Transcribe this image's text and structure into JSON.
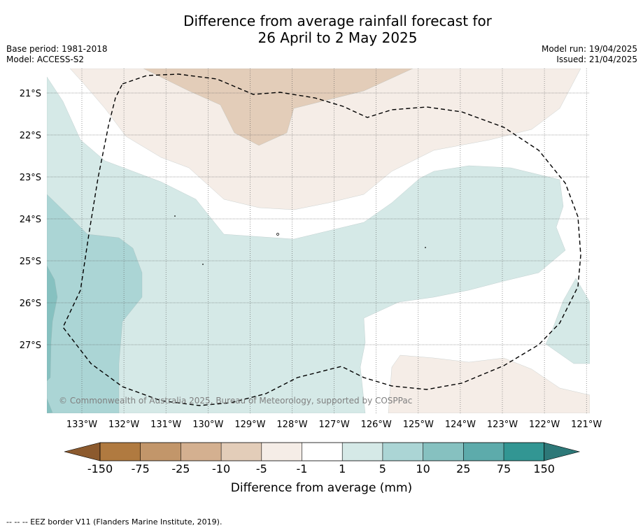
{
  "title_line1": "Difference from average rainfall forecast for",
  "title_line2": "26 April to 2 May 2025",
  "meta_left": [
    "Base period: 1981-2018",
    "Model: ACCESS-S2"
  ],
  "meta_right": [
    "Model run: 19/04/2025",
    "Issued: 21/04/2025"
  ],
  "copyright": "© Commonwealth of Australia 2025, Bureau of Meteorology, supported by COSPPac",
  "lon_labels": [
    "133°W",
    "132°W",
    "131°W",
    "130°W",
    "129°W",
    "128°W",
    "127°W",
    "126°W",
    "125°W",
    "124°W",
    "123°W",
    "122°W",
    "121°W"
  ],
  "lat_labels": [
    "21°S",
    "22°S",
    "23°S",
    "24°S",
    "25°S",
    "26°S",
    "27°S"
  ],
  "colorbar": {
    "label": "Difference from average (mm)",
    "ticks": [
      "-150",
      "-75",
      "-25",
      "-10",
      "-5",
      "-1",
      "1",
      "5",
      "10",
      "25",
      "75",
      "150"
    ],
    "colors": {
      "under": "#8c5a2e",
      "bins": [
        "#b07a40",
        "#c2966a",
        "#d4b090",
        "#e3cdb9",
        "#f5ede7",
        "#ffffff",
        "#d5e9e7",
        "#abd5d5",
        "#86c1c0",
        "#5dabab",
        "#329693"
      ],
      "over": "#2d7878"
    }
  },
  "region_colors": {
    "brown_light": "#f5ede7",
    "brown_mid": "#e3cdb9",
    "teal_light": "#d5e9e7",
    "teal_mid": "#abd5d5",
    "teal_dark": "#86c1c0"
  },
  "footer": "--  --  -- EEZ border V11 (Flanders Marine Institute, 2019)."
}
